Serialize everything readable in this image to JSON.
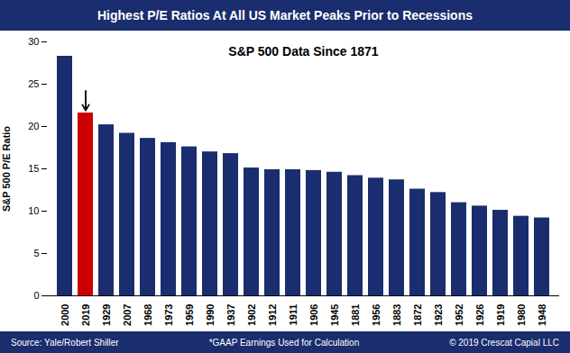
{
  "chart_data": {
    "type": "bar",
    "title": "Highest P/E Ratios At All US Market Peaks Prior to Recessions",
    "subtitle": "S&P 500 Data Since 1871",
    "ylabel": "S&P 500 P/E Ratio",
    "categories": [
      "2000",
      "2019",
      "1929",
      "2007",
      "1968",
      "1973",
      "1959",
      "1990",
      "1937",
      "1902",
      "1912",
      "1911",
      "1906",
      "1945",
      "1881",
      "1956",
      "1883",
      "1872",
      "1923",
      "1952",
      "1926",
      "1919",
      "1980",
      "1948"
    ],
    "values": [
      28.3,
      21.6,
      20.2,
      19.2,
      18.6,
      18.1,
      17.6,
      17.0,
      16.8,
      15.1,
      14.9,
      14.9,
      14.8,
      14.6,
      14.2,
      13.9,
      13.7,
      12.6,
      12.2,
      11.0,
      10.6,
      10.1,
      9.4,
      9.2
    ],
    "colors": [
      "#1a2d6e",
      "#cc0000",
      "#1a2d6e",
      "#1a2d6e",
      "#1a2d6e",
      "#1a2d6e",
      "#1a2d6e",
      "#1a2d6e",
      "#1a2d6e",
      "#1a2d6e",
      "#1a2d6e",
      "#1a2d6e",
      "#1a2d6e",
      "#1a2d6e",
      "#1a2d6e",
      "#1a2d6e",
      "#1a2d6e",
      "#1a2d6e",
      "#1a2d6e",
      "#1a2d6e",
      "#1a2d6e",
      "#1a2d6e",
      "#1a2d6e",
      "#1a2d6e"
    ],
    "ylim": [
      0,
      30
    ],
    "yticks": [
      0,
      5,
      10,
      15,
      20,
      25,
      30
    ],
    "grid": false,
    "annotations": [
      "Source: Yale/Robert Shiller",
      "*GAAP Earnings Used for Calculation",
      "© 2019 Crescat Capial LLC"
    ],
    "arrow": {
      "category": "2019",
      "y_start": 24.2,
      "y_end": 21.9
    }
  }
}
